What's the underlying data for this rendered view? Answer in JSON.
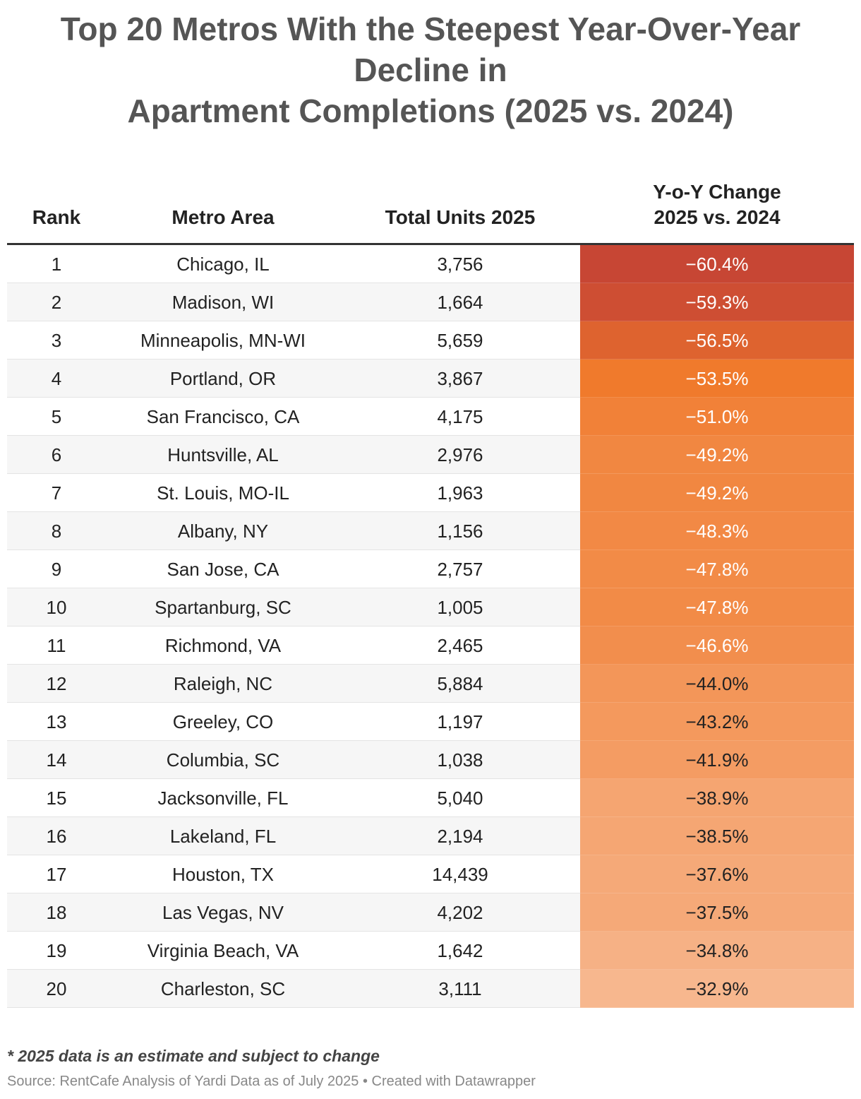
{
  "chart_data": {
    "type": "table",
    "title_lines": [
      "Top 20 Metros With the Steepest Year-Over-Year",
      "Decline in",
      "Apartment Completions (2025 vs. 2024)"
    ],
    "columns": {
      "rank": "Rank",
      "metro": "Metro Area",
      "units": "Total Units 2025",
      "yoy_line1": "Y-o-Y Change",
      "yoy_line2": "2025 vs. 2024"
    },
    "rows": [
      {
        "rank": "1",
        "metro": "Chicago, IL",
        "units": "3,756",
        "yoy": "−60.4%",
        "value": -60.4
      },
      {
        "rank": "2",
        "metro": "Madison, WI",
        "units": "1,664",
        "yoy": "−59.3%",
        "value": -59.3
      },
      {
        "rank": "3",
        "metro": "Minneapolis, MN-WI",
        "units": "5,659",
        "yoy": "−56.5%",
        "value": -56.5
      },
      {
        "rank": "4",
        "metro": "Portland, OR",
        "units": "3,867",
        "yoy": "−53.5%",
        "value": -53.5
      },
      {
        "rank": "5",
        "metro": "San Francisco, CA",
        "units": "4,175",
        "yoy": "−51.0%",
        "value": -51.0
      },
      {
        "rank": "6",
        "metro": "Huntsville, AL",
        "units": "2,976",
        "yoy": "−49.2%",
        "value": -49.2
      },
      {
        "rank": "7",
        "metro": "St. Louis, MO-IL",
        "units": "1,963",
        "yoy": "−49.2%",
        "value": -49.2
      },
      {
        "rank": "8",
        "metro": "Albany, NY",
        "units": "1,156",
        "yoy": "−48.3%",
        "value": -48.3
      },
      {
        "rank": "9",
        "metro": "San Jose, CA",
        "units": "2,757",
        "yoy": "−47.8%",
        "value": -47.8
      },
      {
        "rank": "10",
        "metro": "Spartanburg, SC",
        "units": "1,005",
        "yoy": "−47.8%",
        "value": -47.8
      },
      {
        "rank": "11",
        "metro": "Richmond, VA",
        "units": "2,465",
        "yoy": "−46.6%",
        "value": -46.6
      },
      {
        "rank": "12",
        "metro": "Raleigh, NC",
        "units": "5,884",
        "yoy": "−44.0%",
        "value": -44.0
      },
      {
        "rank": "13",
        "metro": "Greeley, CO",
        "units": "1,197",
        "yoy": "−43.2%",
        "value": -43.2
      },
      {
        "rank": "14",
        "metro": "Columbia, SC",
        "units": "1,038",
        "yoy": "−41.9%",
        "value": -41.9
      },
      {
        "rank": "15",
        "metro": "Jacksonville, FL",
        "units": "5,040",
        "yoy": "−38.9%",
        "value": -38.9
      },
      {
        "rank": "16",
        "metro": "Lakeland, FL",
        "units": "2,194",
        "yoy": "−38.5%",
        "value": -38.5
      },
      {
        "rank": "17",
        "metro": "Houston, TX",
        "units": "14,439",
        "yoy": "−37.6%",
        "value": -37.6
      },
      {
        "rank": "18",
        "metro": "Las Vegas, NV",
        "units": "4,202",
        "yoy": "−37.5%",
        "value": -37.5
      },
      {
        "rank": "19",
        "metro": "Virginia Beach, VA",
        "units": "1,642",
        "yoy": "−34.8%",
        "value": -34.8
      },
      {
        "rank": "20",
        "metro": "Charleston, SC",
        "units": "3,111",
        "yoy": "−32.9%",
        "value": -32.9
      }
    ],
    "color_scale": {
      "most_negative": "#c74634",
      "mid": "#f07a2c",
      "least_negative": "#f7b78e"
    }
  },
  "footnote": "* 2025 data is an estimate and subject to change",
  "source": "Source: RentCafe Analysis of Yardi Data as of July 2025 • Created with Datawrapper"
}
